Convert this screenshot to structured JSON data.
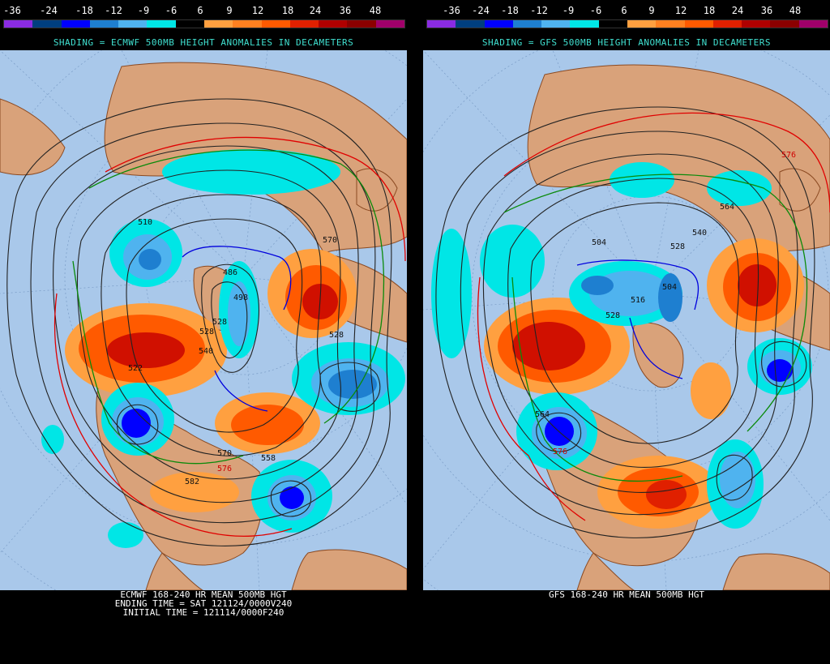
{
  "scale": {
    "ticks": [
      "-36",
      "-24",
      "-18",
      "-12",
      "-9",
      "-6",
      "6",
      "9",
      "12",
      "18",
      "24",
      "36",
      "48"
    ],
    "colors": [
      "#8a2be2",
      "#003f7f",
      "#0000ff",
      "#1e7fd0",
      "#4fb3ef",
      "#00e6e6",
      "#000000",
      "#ffa040",
      "#ff8020",
      "#ff5a00",
      "#e02000",
      "#b00000",
      "#8b0000",
      "#a0006a"
    ]
  },
  "panels": [
    {
      "title": "SHADING = ECMWF 500MB HEIGHT ANOMALIES IN DECAMETERS",
      "bottom_lines": [
        "ECMWF 168-240 HR MEAN 500MB HGT",
        "ENDING TIME = SAT 121124/0000V240",
        "INITIAL TIME = 121114/0000F240"
      ],
      "contour_labels": [
        "510",
        "570",
        "486",
        "498",
        "528",
        "528",
        "522",
        "528",
        "540",
        "558",
        "570",
        "582",
        "576"
      ]
    },
    {
      "title": "SHADING = GFS 500MB HEIGHT ANOMALIES IN DECAMETERS",
      "bottom_lines": [
        "GFS 168-240 HR MEAN 500MB HGT"
      ],
      "contour_labels": [
        "576",
        "564",
        "540",
        "504",
        "528",
        "528",
        "504",
        "516",
        "564",
        "576"
      ]
    }
  ]
}
